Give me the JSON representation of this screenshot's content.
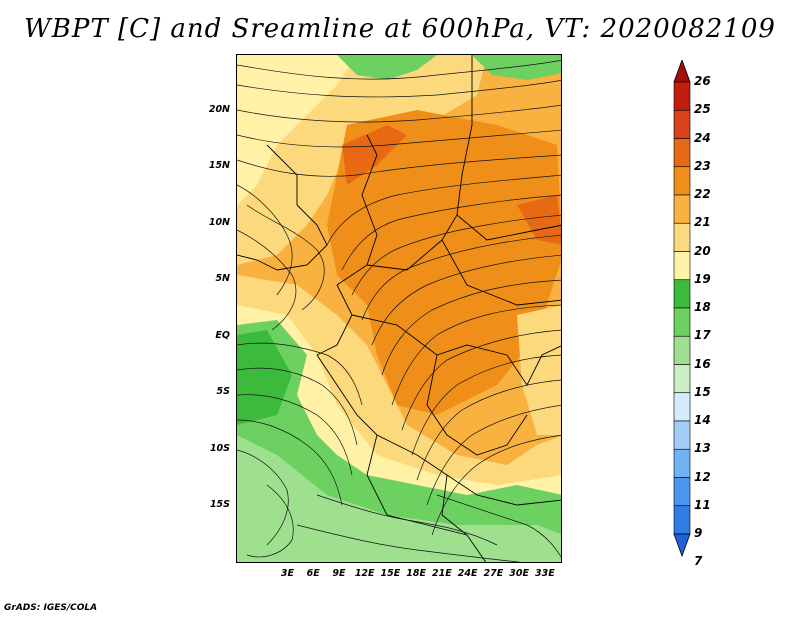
{
  "title": "WBPT [C] and Sreamline at 600hPa, VT: 2020082109",
  "credit": "GrADS: IGES/COLA",
  "map": {
    "lon_range": [
      -3,
      35
    ],
    "lat_range": [
      -20,
      25
    ],
    "y_ticks": [
      {
        "label": "20N",
        "lat": 20
      },
      {
        "label": "15N",
        "lat": 15
      },
      {
        "label": "10N",
        "lat": 10
      },
      {
        "label": "5N",
        "lat": 5
      },
      {
        "label": "EQ",
        "lat": 0
      },
      {
        "label": "5S",
        "lat": -5
      },
      {
        "label": "10S",
        "lat": -10
      },
      {
        "label": "15S",
        "lat": -15
      }
    ],
    "x_ticks": [
      {
        "label": "3E",
        "lon": 3
      },
      {
        "label": "6E",
        "lon": 6
      },
      {
        "label": "9E",
        "lon": 9
      },
      {
        "label": "12E",
        "lon": 12
      },
      {
        "label": "15E",
        "lon": 15
      },
      {
        "label": "18E",
        "lon": 18
      },
      {
        "label": "21E",
        "lon": 21
      },
      {
        "label": "24E",
        "lon": 24
      },
      {
        "label": "27E",
        "lon": 27
      },
      {
        "label": "30E",
        "lon": 30
      },
      {
        "label": "33E",
        "lon": 33
      }
    ]
  },
  "colorbar": {
    "levels": [
      "7",
      "9",
      "11",
      "12",
      "13",
      "14",
      "15",
      "16",
      "17",
      "18",
      "19",
      "20",
      "21",
      "22",
      "23",
      "24",
      "25",
      "26"
    ],
    "colors": [
      "#1f62d8",
      "#2f7de6",
      "#4b97ee",
      "#72b2f3",
      "#a2cdf8",
      "#d4ecfb",
      "#c9eec3",
      "#9ee08e",
      "#6cd160",
      "#3cba3c",
      "#fff2a6",
      "#fcd97d",
      "#f9b13f",
      "#ef8f1a",
      "#e86914",
      "#d8411a",
      "#c01d10",
      "#a40e0a"
    ]
  }
}
